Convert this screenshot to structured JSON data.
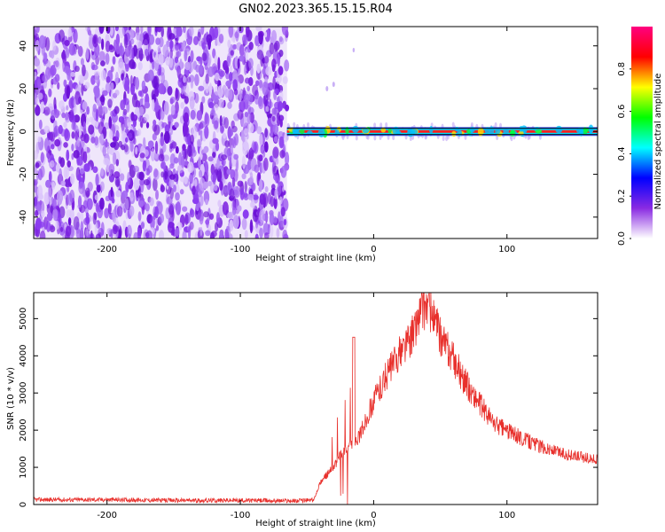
{
  "title": "GN02.2023.365.15.15.R04",
  "charts": [
    {
      "type": "heatmap",
      "xlabel": "Height of straight line (km)",
      "ylabel": "Frequency (Hz)",
      "xlim": [
        -255,
        168
      ],
      "ylim": [
        -50,
        49
      ],
      "xticks": [
        -200,
        -100,
        0,
        100
      ],
      "yticks": [
        -40,
        -20,
        0,
        20,
        40
      ],
      "xtick_labels": [
        "-200",
        "-100",
        "0",
        "100"
      ],
      "ytick_labels": [
        "-40",
        "-20",
        "0",
        "20",
        "40"
      ],
      "noise_region_x": [
        -255,
        -65
      ],
      "signal_line_y": 0,
      "colorbar": {
        "label": "Normalized spectral amplitude",
        "range": [
          0,
          1
        ],
        "ticks": [
          0.0,
          0.2,
          0.4,
          0.6,
          0.8
        ],
        "tick_labels": [
          "0.0",
          "0.2",
          "0.4",
          "0.6",
          "0.8"
        ],
        "colors": [
          "#ffffff",
          "#8a2be2",
          "#0000ff",
          "#00ffff",
          "#00ff00",
          "#ffff00",
          "#ff0000",
          "#ff0080"
        ]
      }
    },
    {
      "type": "line",
      "xlabel": "Height of straight line (km)",
      "ylabel": "SNR (10 * v/v)",
      "xlim": [
        -255,
        168
      ],
      "ylim": [
        0,
        5700
      ],
      "xticks": [
        -200,
        -100,
        0,
        100
      ],
      "yticks": [
        0,
        1000,
        2000,
        3000,
        4000,
        5000
      ],
      "xtick_labels": [
        "-200",
        "-100",
        "0",
        "100"
      ],
      "ytick_labels": [
        "0",
        "1000",
        "2000",
        "3000",
        "4000",
        "5000"
      ],
      "color": "#e8302c",
      "x": [
        -255,
        -200,
        -150,
        -100,
        -60,
        -45,
        -40,
        -35,
        -30,
        -25,
        -20,
        -15,
        -10,
        0,
        10,
        20,
        30,
        35,
        40,
        45,
        50,
        60,
        70,
        80,
        90,
        100,
        110,
        120,
        130,
        140,
        150,
        160,
        168
      ],
      "y": [
        130,
        130,
        110,
        110,
        100,
        120,
        600,
        800,
        1000,
        1300,
        1500,
        1700,
        1900,
        2800,
        3500,
        4100,
        4600,
        5200,
        5400,
        5000,
        4500,
        3900,
        3200,
        2700,
        2200,
        2000,
        1800,
        1650,
        1500,
        1400,
        1300,
        1250,
        1200
      ]
    }
  ]
}
